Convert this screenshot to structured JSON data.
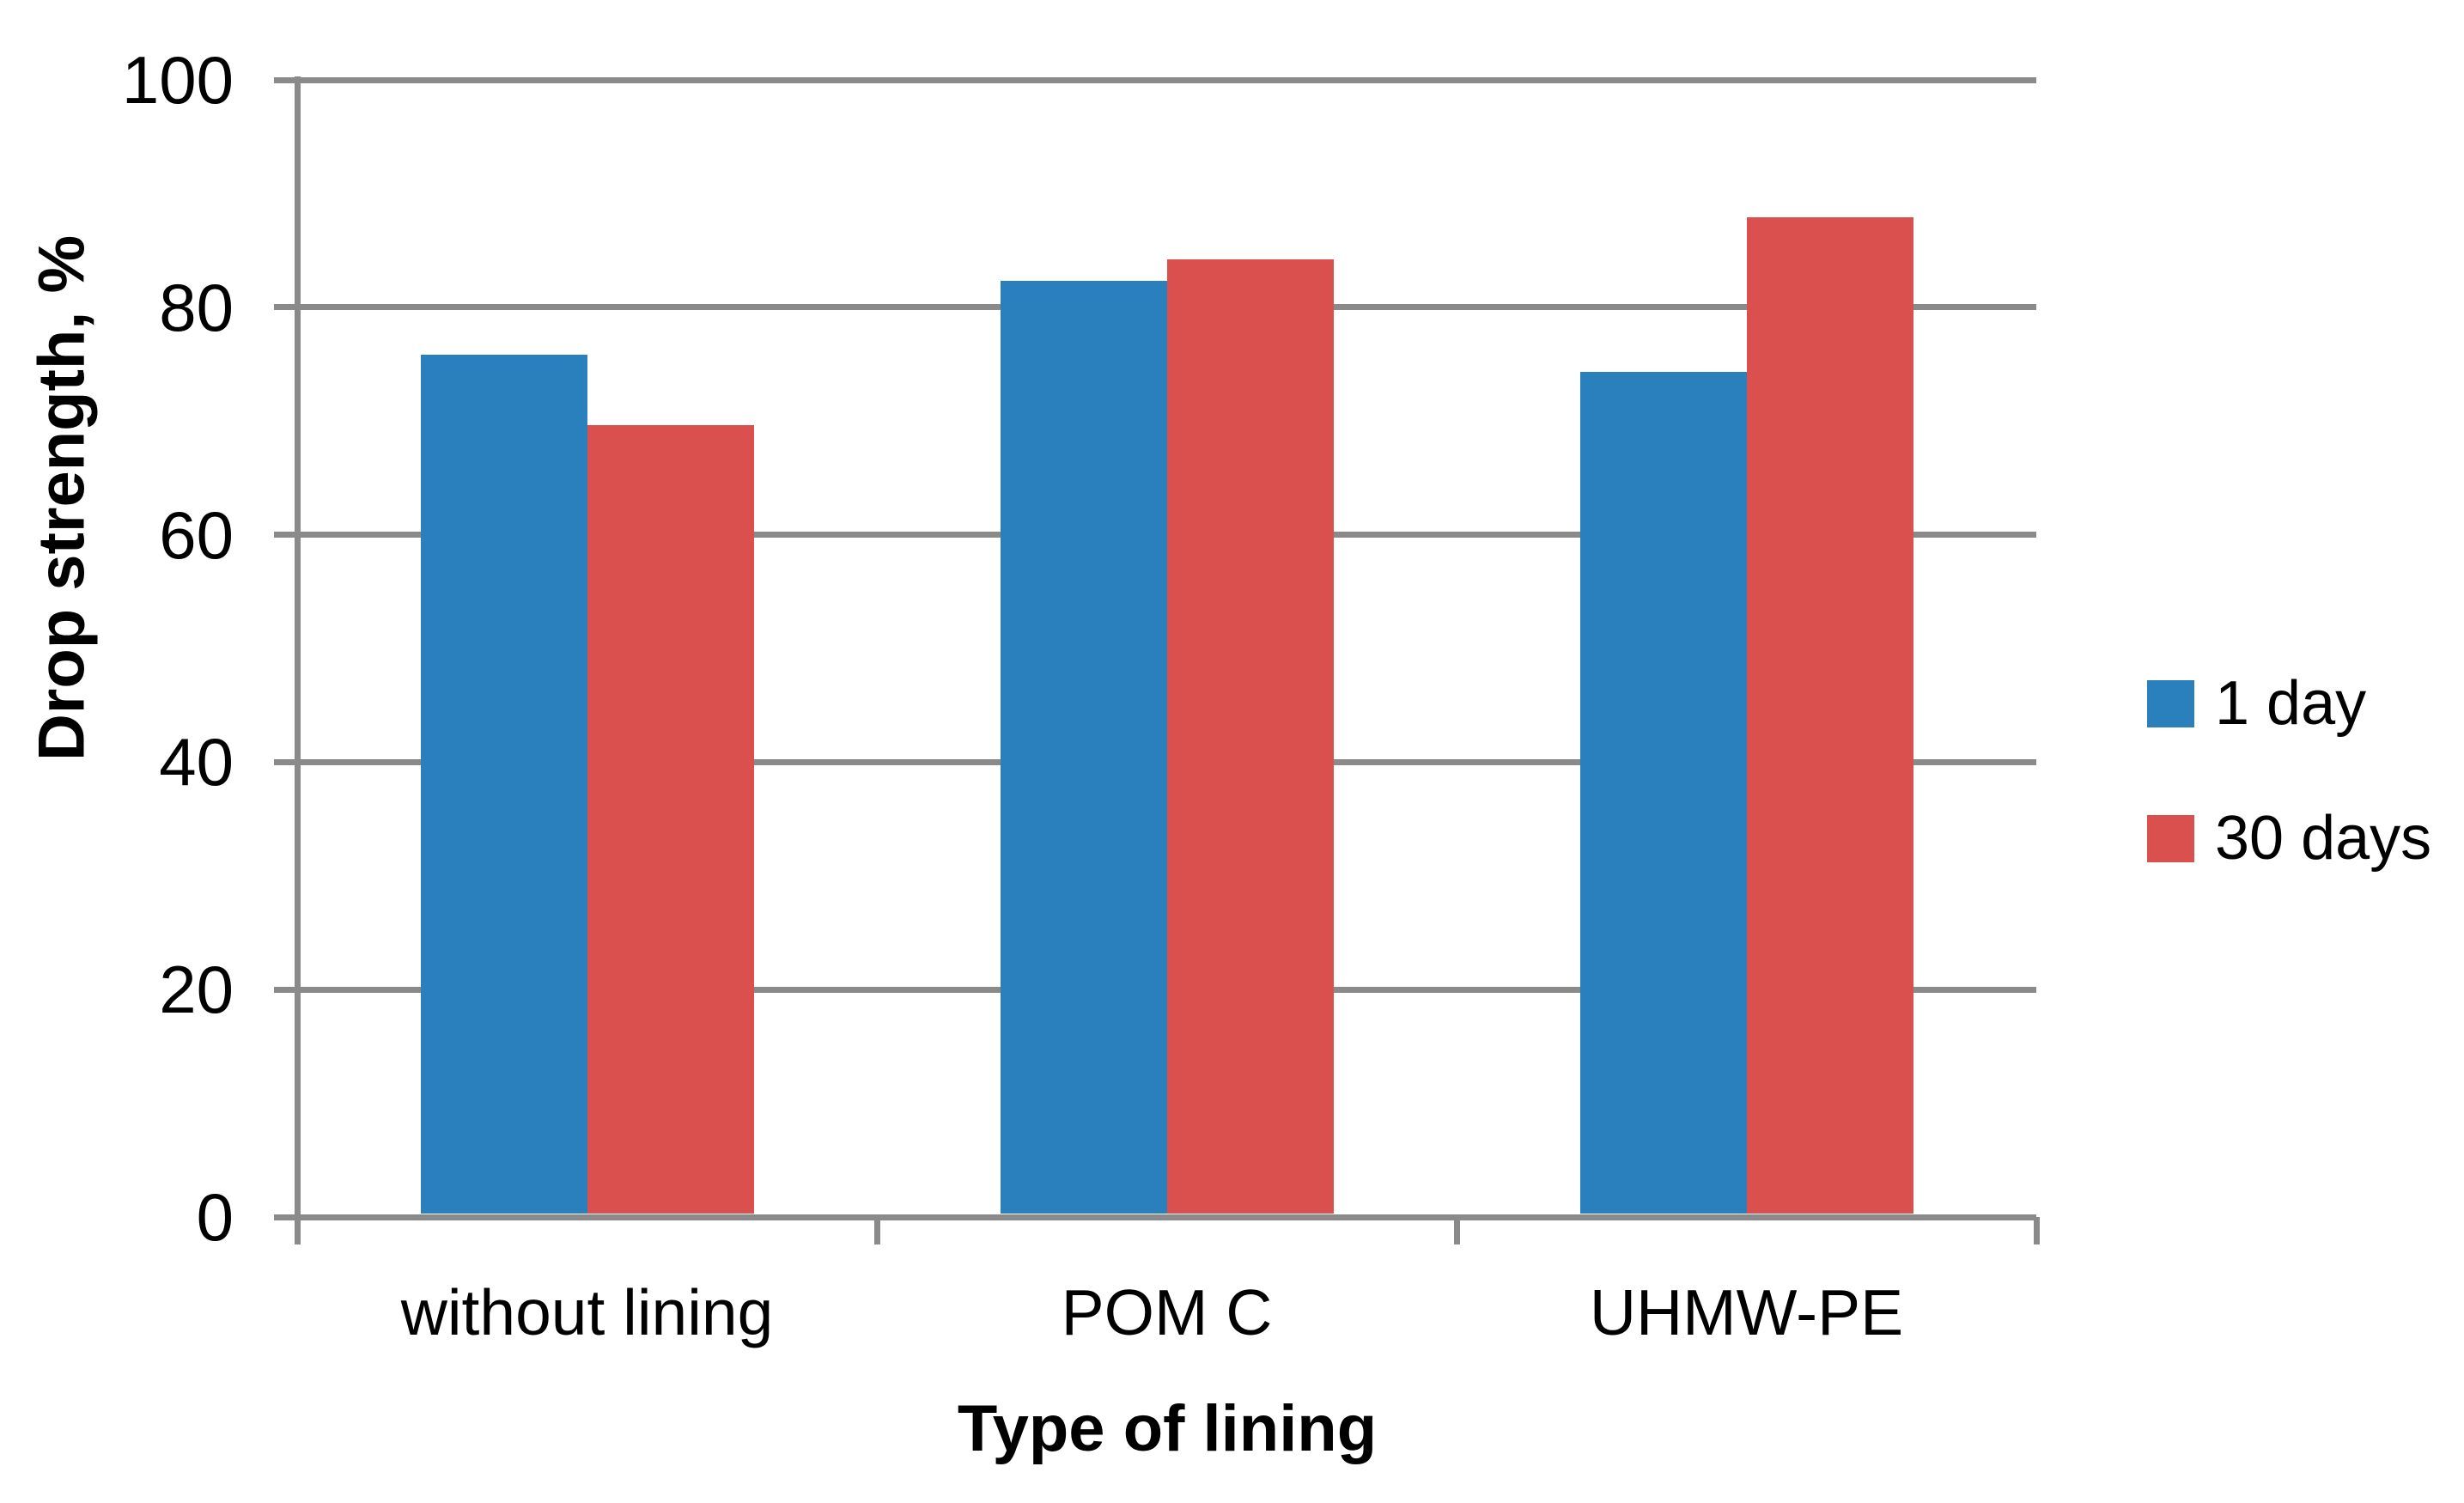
{
  "chart_data": {
    "type": "bar",
    "title": "",
    "categories": [
      "without lining",
      "POM C",
      "UHMW-PE"
    ],
    "series": [
      {
        "name": "1 day",
        "color": "#2980bc",
        "values": [
          75.8,
          82.3,
          74.3
        ]
      },
      {
        "name": "30 days",
        "color": "#da504e",
        "values": [
          69.6,
          84.2,
          87.9
        ]
      }
    ],
    "xlabel": "Type of lining",
    "ylabel": "Drop strength, %",
    "ylim": [
      0,
      100
    ],
    "y_ticks": [
      "0",
      "20",
      "40",
      "60",
      "80",
      "100"
    ],
    "grid": true,
    "legend_position": "right"
  },
  "colors": {
    "series_1": "#2980bc",
    "series_2": "#da504e",
    "axis_gray": "#8a8a8a",
    "text": "#000000",
    "background": "#ffffff"
  }
}
